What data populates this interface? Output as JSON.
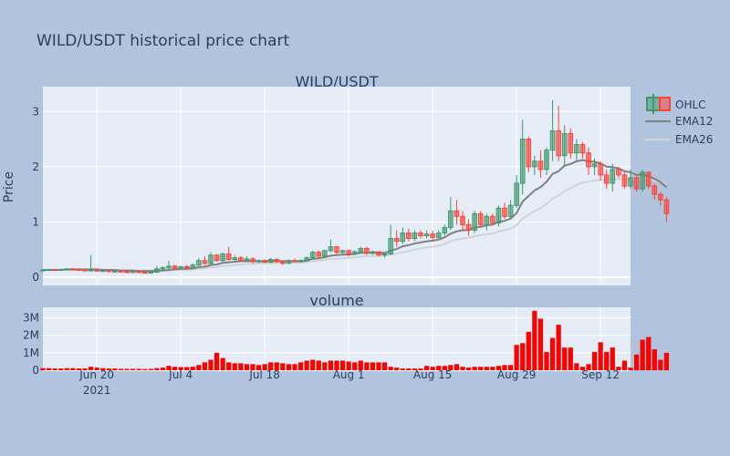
{
  "chart_data": {
    "type": "candlestick",
    "title": "WILD/USDT historical price chart",
    "colors": {
      "background": "#b0c4de",
      "plot_bg": "#e5ecf6",
      "grid": "#ffffff",
      "text": "#2a3f5f",
      "increasing": "#3d9970",
      "decreasing": "#ff4136",
      "ema12": "#808080",
      "ema26": "#d3d3d3",
      "volume": "#ff0000"
    },
    "x_ticks": [
      {
        "date": "2021-06-20",
        "label": "Jun 20",
        "sub": "2021"
      },
      {
        "date": "2021-07-04",
        "label": "Jul 4",
        "sub": ""
      },
      {
        "date": "2021-07-18",
        "label": "Jul 18",
        "sub": ""
      },
      {
        "date": "2021-08-01",
        "label": "Aug 1",
        "sub": ""
      },
      {
        "date": "2021-08-15",
        "label": "Aug 15",
        "sub": ""
      },
      {
        "date": "2021-08-29",
        "label": "Aug 29",
        "sub": ""
      },
      {
        "date": "2021-09-12",
        "label": "Sep 12",
        "sub": ""
      }
    ],
    "x_range": [
      "2021-06-11",
      "2021-09-17"
    ],
    "price_panel": {
      "subtitle": "WILD/USDT",
      "ylabel": "Price",
      "ylim": [
        -0.15,
        3.45
      ],
      "yticks": [
        0,
        1,
        2,
        3
      ],
      "legend": [
        "OHLC",
        "EMA12",
        "EMA26"
      ],
      "legend_position": "right"
    },
    "volume_panel": {
      "subtitle": "volume",
      "ylim": [
        0,
        3.6
      ],
      "yticks": [
        0,
        1,
        2,
        3
      ],
      "ytick_labels": [
        "0",
        "1M",
        "2M",
        "3M"
      ],
      "unit": "M"
    },
    "start_date": "2021-06-11",
    "series": [
      {
        "name": "OHLC",
        "ohlc": [
          [
            0.12,
            0.14,
            0.11,
            0.13
          ],
          [
            0.13,
            0.15,
            0.12,
            0.14
          ],
          [
            0.14,
            0.15,
            0.12,
            0.13
          ],
          [
            0.13,
            0.15,
            0.12,
            0.14
          ],
          [
            0.14,
            0.16,
            0.13,
            0.15
          ],
          [
            0.15,
            0.16,
            0.13,
            0.14
          ],
          [
            0.14,
            0.15,
            0.12,
            0.13
          ],
          [
            0.13,
            0.14,
            0.11,
            0.12
          ],
          [
            0.12,
            0.4,
            0.11,
            0.13
          ],
          [
            0.13,
            0.15,
            0.1,
            0.11
          ],
          [
            0.11,
            0.13,
            0.1,
            0.12
          ],
          [
            0.12,
            0.13,
            0.09,
            0.1
          ],
          [
            0.1,
            0.12,
            0.09,
            0.11
          ],
          [
            0.11,
            0.12,
            0.09,
            0.1
          ],
          [
            0.1,
            0.11,
            0.08,
            0.09
          ],
          [
            0.09,
            0.11,
            0.08,
            0.1
          ],
          [
            0.1,
            0.11,
            0.08,
            0.09
          ],
          [
            0.09,
            0.1,
            0.07,
            0.08
          ],
          [
            0.08,
            0.1,
            0.07,
            0.09
          ],
          [
            0.09,
            0.2,
            0.08,
            0.15
          ],
          [
            0.15,
            0.2,
            0.13,
            0.17
          ],
          [
            0.17,
            0.3,
            0.15,
            0.2
          ],
          [
            0.2,
            0.22,
            0.14,
            0.16
          ],
          [
            0.16,
            0.2,
            0.14,
            0.19
          ],
          [
            0.19,
            0.22,
            0.15,
            0.17
          ],
          [
            0.17,
            0.25,
            0.16,
            0.22
          ],
          [
            0.22,
            0.35,
            0.2,
            0.3
          ],
          [
            0.3,
            0.38,
            0.22,
            0.25
          ],
          [
            0.25,
            0.45,
            0.23,
            0.4
          ],
          [
            0.4,
            0.42,
            0.28,
            0.3
          ],
          [
            0.3,
            0.45,
            0.28,
            0.42
          ],
          [
            0.42,
            0.55,
            0.3,
            0.32
          ],
          [
            0.32,
            0.4,
            0.28,
            0.35
          ],
          [
            0.35,
            0.38,
            0.28,
            0.3
          ],
          [
            0.3,
            0.38,
            0.28,
            0.33
          ],
          [
            0.33,
            0.36,
            0.25,
            0.28
          ],
          [
            0.28,
            0.32,
            0.25,
            0.3
          ],
          [
            0.3,
            0.32,
            0.26,
            0.27
          ],
          [
            0.27,
            0.35,
            0.26,
            0.32
          ],
          [
            0.32,
            0.34,
            0.26,
            0.28
          ],
          [
            0.28,
            0.3,
            0.22,
            0.25
          ],
          [
            0.25,
            0.32,
            0.24,
            0.3
          ],
          [
            0.3,
            0.34,
            0.27,
            0.28
          ],
          [
            0.28,
            0.32,
            0.26,
            0.3
          ],
          [
            0.3,
            0.38,
            0.29,
            0.35
          ],
          [
            0.35,
            0.48,
            0.33,
            0.45
          ],
          [
            0.45,
            0.48,
            0.35,
            0.38
          ],
          [
            0.38,
            0.5,
            0.36,
            0.48
          ],
          [
            0.48,
            0.68,
            0.45,
            0.55
          ],
          [
            0.55,
            0.56,
            0.42,
            0.45
          ],
          [
            0.45,
            0.5,
            0.4,
            0.48
          ],
          [
            0.48,
            0.5,
            0.38,
            0.42
          ],
          [
            0.42,
            0.48,
            0.4,
            0.46
          ],
          [
            0.46,
            0.55,
            0.44,
            0.52
          ],
          [
            0.52,
            0.55,
            0.4,
            0.44
          ],
          [
            0.44,
            0.48,
            0.4,
            0.46
          ],
          [
            0.46,
            0.47,
            0.38,
            0.4
          ],
          [
            0.4,
            0.45,
            0.36,
            0.42
          ],
          [
            0.42,
            0.95,
            0.4,
            0.7
          ],
          [
            0.7,
            0.85,
            0.55,
            0.65
          ],
          [
            0.65,
            0.9,
            0.6,
            0.8
          ],
          [
            0.8,
            0.88,
            0.65,
            0.7
          ],
          [
            0.7,
            0.85,
            0.65,
            0.8
          ],
          [
            0.8,
            0.85,
            0.7,
            0.75
          ],
          [
            0.75,
            0.85,
            0.7,
            0.78
          ],
          [
            0.78,
            0.84,
            0.68,
            0.72
          ],
          [
            0.72,
            0.85,
            0.7,
            0.8
          ],
          [
            0.8,
            0.95,
            0.75,
            0.9
          ],
          [
            0.9,
            1.45,
            0.85,
            1.2
          ],
          [
            1.2,
            1.4,
            0.95,
            1.1
          ],
          [
            1.1,
            1.2,
            0.85,
            0.95
          ],
          [
            0.95,
            1.05,
            0.75,
            0.85
          ],
          [
            0.85,
            1.2,
            0.8,
            1.15
          ],
          [
            1.15,
            1.2,
            0.9,
            0.95
          ],
          [
            0.95,
            1.15,
            0.85,
            1.1
          ],
          [
            1.1,
            1.15,
            0.95,
            0.98
          ],
          [
            0.98,
            1.3,
            0.92,
            1.25
          ],
          [
            1.25,
            1.35,
            1.05,
            1.1
          ],
          [
            1.1,
            1.4,
            1.05,
            1.3
          ],
          [
            1.3,
            1.85,
            1.25,
            1.7
          ],
          [
            1.7,
            2.85,
            1.5,
            2.5
          ],
          [
            2.5,
            2.55,
            1.9,
            2.0
          ],
          [
            2.0,
            2.2,
            1.85,
            2.1
          ],
          [
            2.1,
            2.3,
            1.8,
            1.95
          ],
          [
            1.95,
            2.35,
            1.85,
            2.3
          ],
          [
            2.3,
            3.2,
            2.1,
            2.65
          ],
          [
            2.65,
            3.1,
            2.1,
            2.2
          ],
          [
            2.2,
            2.75,
            2.0,
            2.6
          ],
          [
            2.6,
            2.7,
            2.15,
            2.25
          ],
          [
            2.25,
            2.5,
            2.1,
            2.4
          ],
          [
            2.4,
            2.45,
            2.15,
            2.25
          ],
          [
            2.25,
            2.35,
            1.85,
            2.0
          ],
          [
            2.0,
            2.15,
            1.85,
            2.05
          ],
          [
            2.05,
            2.1,
            1.75,
            1.85
          ],
          [
            1.85,
            1.95,
            1.6,
            1.7
          ],
          [
            1.7,
            2.05,
            1.55,
            1.95
          ],
          [
            1.95,
            2.0,
            1.8,
            1.85
          ],
          [
            1.85,
            1.9,
            1.6,
            1.65
          ],
          [
            1.65,
            1.95,
            1.6,
            1.8
          ],
          [
            1.8,
            1.85,
            1.55,
            1.6
          ],
          [
            1.6,
            1.95,
            1.55,
            1.9
          ],
          [
            1.9,
            1.92,
            1.6,
            1.65
          ],
          [
            1.65,
            1.7,
            1.4,
            1.5
          ],
          [
            1.5,
            1.55,
            1.3,
            1.4
          ],
          [
            1.4,
            1.45,
            1.0,
            1.15
          ]
        ]
      },
      {
        "name": "EMA12",
        "values": [
          0.13,
          0.13,
          0.13,
          0.13,
          0.14,
          0.14,
          0.14,
          0.14,
          0.14,
          0.14,
          0.13,
          0.13,
          0.13,
          0.12,
          0.12,
          0.12,
          0.11,
          0.11,
          0.11,
          0.12,
          0.12,
          0.13,
          0.14,
          0.15,
          0.15,
          0.16,
          0.18,
          0.19,
          0.22,
          0.23,
          0.26,
          0.27,
          0.28,
          0.29,
          0.29,
          0.29,
          0.29,
          0.29,
          0.3,
          0.29,
          0.29,
          0.29,
          0.29,
          0.29,
          0.3,
          0.33,
          0.34,
          0.36,
          0.39,
          0.4,
          0.41,
          0.41,
          0.42,
          0.44,
          0.44,
          0.44,
          0.44,
          0.44,
          0.48,
          0.51,
          0.56,
          0.58,
          0.61,
          0.63,
          0.65,
          0.66,
          0.68,
          0.72,
          0.79,
          0.83,
          0.85,
          0.85,
          0.9,
          0.91,
          0.94,
          0.95,
          1.0,
          1.02,
          1.06,
          1.16,
          1.37,
          1.47,
          1.57,
          1.63,
          1.73,
          1.87,
          1.92,
          2.02,
          2.05,
          2.1,
          2.12,
          2.1,
          2.09,
          2.06,
          2.0,
          1.99,
          1.97,
          1.92,
          1.9,
          1.85,
          1.86,
          1.83,
          1.78,
          1.72,
          1.63
        ]
      },
      {
        "name": "EMA26",
        "values": [
          0.13,
          0.13,
          0.13,
          0.13,
          0.13,
          0.13,
          0.13,
          0.13,
          0.13,
          0.13,
          0.13,
          0.13,
          0.12,
          0.12,
          0.12,
          0.12,
          0.12,
          0.12,
          0.12,
          0.12,
          0.12,
          0.12,
          0.13,
          0.13,
          0.13,
          0.14,
          0.15,
          0.16,
          0.18,
          0.18,
          0.2,
          0.21,
          0.22,
          0.23,
          0.24,
          0.24,
          0.25,
          0.25,
          0.25,
          0.26,
          0.26,
          0.26,
          0.26,
          0.27,
          0.27,
          0.29,
          0.3,
          0.31,
          0.33,
          0.33,
          0.34,
          0.35,
          0.36,
          0.37,
          0.38,
          0.38,
          0.38,
          0.39,
          0.41,
          0.43,
          0.45,
          0.47,
          0.5,
          0.52,
          0.54,
          0.55,
          0.57,
          0.6,
          0.65,
          0.68,
          0.7,
          0.71,
          0.74,
          0.76,
          0.78,
          0.79,
          0.83,
          0.85,
          0.88,
          0.94,
          1.06,
          1.13,
          1.2,
          1.25,
          1.33,
          1.42,
          1.48,
          1.56,
          1.61,
          1.67,
          1.71,
          1.73,
          1.75,
          1.76,
          1.76,
          1.77,
          1.78,
          1.77,
          1.78,
          1.77,
          1.78,
          1.77,
          1.75,
          1.72,
          1.68
        ]
      },
      {
        "name": "volume",
        "values": [
          0.12,
          0.12,
          0.1,
          0.1,
          0.12,
          0.12,
          0.1,
          0.1,
          0.2,
          0.15,
          0.12,
          0.1,
          0.1,
          0.08,
          0.08,
          0.08,
          0.08,
          0.07,
          0.08,
          0.12,
          0.15,
          0.25,
          0.2,
          0.18,
          0.18,
          0.2,
          0.3,
          0.45,
          0.6,
          1.0,
          0.7,
          0.45,
          0.4,
          0.4,
          0.35,
          0.35,
          0.3,
          0.35,
          0.45,
          0.45,
          0.4,
          0.35,
          0.35,
          0.45,
          0.55,
          0.6,
          0.55,
          0.45,
          0.55,
          0.55,
          0.55,
          0.5,
          0.45,
          0.55,
          0.45,
          0.45,
          0.45,
          0.45,
          0.2,
          0.15,
          0.1,
          0.1,
          0.1,
          0.1,
          0.25,
          0.2,
          0.25,
          0.25,
          0.3,
          0.35,
          0.2,
          0.15,
          0.2,
          0.2,
          0.2,
          0.2,
          0.25,
          0.3,
          0.3,
          1.45,
          1.55,
          2.2,
          3.4,
          2.95,
          1.05,
          1.85,
          2.6,
          1.3,
          1.3,
          0.4,
          0.2,
          0.35,
          1.05,
          1.6,
          1.05,
          1.3,
          0.2,
          0.55,
          0.15,
          0.9,
          1.75,
          1.9,
          1.2,
          0.6,
          1.0
        ]
      }
    ]
  }
}
